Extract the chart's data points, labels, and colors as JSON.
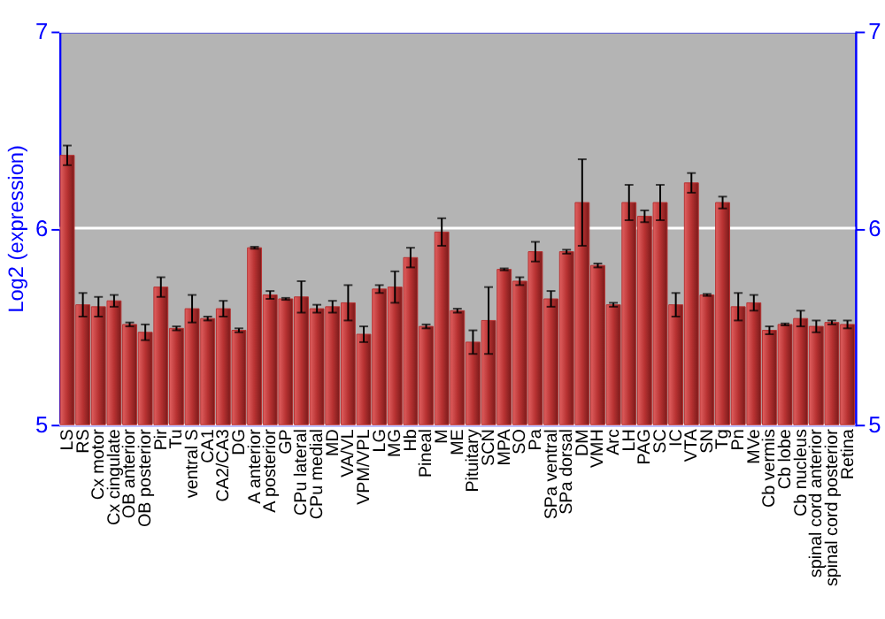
{
  "chart_data": {
    "type": "bar",
    "ylabel": "Log2 (expression)",
    "categories": [
      "LS",
      "RS",
      "Cx motor",
      "Cx cingulate",
      "OB anterior",
      "OB posterior",
      "Pir",
      "Tu",
      "ventral S",
      "CA1",
      "CA2/CA3",
      "DG",
      "A anterior",
      "A posterior",
      "GP",
      "CPu lateral",
      "CPu medial",
      "MD",
      "VA/VL",
      "VPM/VPL",
      "LG",
      "MG",
      "Hb",
      "Pineal",
      "M",
      "ME",
      "Pituitary",
      "SCN",
      "MPA",
      "SO",
      "Pa",
      "SPa ventral",
      "SPa dorsal",
      "DM",
      "VMH",
      "Arc",
      "LH",
      "PAG",
      "SC",
      "IC",
      "VTA",
      "SN",
      "Tg",
      "Pn",
      "MVe",
      "Cb vermis",
      "Cb lobe",
      "Cb nucleus",
      "spinal cord anterior",
      "spinal cord posterior",
      "Retina"
    ],
    "values": [
      6.37,
      5.61,
      5.6,
      5.63,
      5.51,
      5.47,
      5.7,
      5.49,
      5.59,
      5.54,
      5.59,
      5.48,
      5.9,
      5.66,
      5.64,
      5.65,
      5.59,
      5.6,
      5.62,
      5.46,
      5.69,
      5.7,
      5.85,
      5.5,
      5.98,
      5.58,
      5.42,
      5.53,
      5.79,
      5.73,
      5.88,
      5.64,
      5.88,
      6.13,
      5.81,
      5.61,
      6.13,
      6.06,
      6.13,
      5.61,
      6.23,
      5.66,
      6.13,
      5.6,
      5.62,
      5.48,
      5.51,
      5.54,
      5.5,
      5.52,
      5.51
    ],
    "errors": [
      0.05,
      0.06,
      0.05,
      0.03,
      0.01,
      0.04,
      0.05,
      0.01,
      0.07,
      0.01,
      0.04,
      0.01,
      0.005,
      0.02,
      0.005,
      0.08,
      0.02,
      0.03,
      0.09,
      0.04,
      0.02,
      0.08,
      0.05,
      0.01,
      0.07,
      0.01,
      0.06,
      0.17,
      0.005,
      0.02,
      0.05,
      0.04,
      0.01,
      0.22,
      0.01,
      0.01,
      0.09,
      0.03,
      0.09,
      0.06,
      0.05,
      0.005,
      0.03,
      0.07,
      0.04,
      0.02,
      0.005,
      0.04,
      0.03,
      0.01,
      0.02
    ],
    "color": "#b83232",
    "ylim": [
      5,
      7
    ],
    "yticks": [
      5,
      6,
      7
    ],
    "y2lim": [
      5,
      7
    ],
    "y2ticks": [
      5,
      6,
      7
    ],
    "grid": "y"
  }
}
